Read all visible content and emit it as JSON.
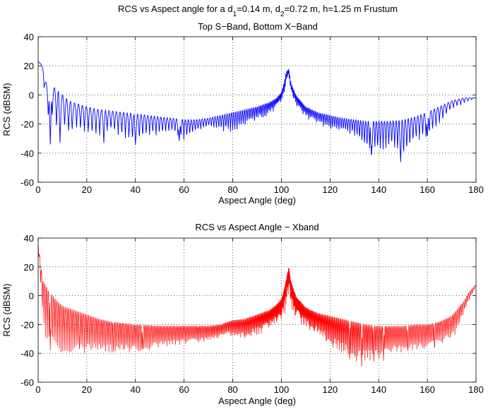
{
  "figure": {
    "title_line1": {
      "prefix": "RCS vs Aspect angle for a d",
      "sub1": "1",
      "mid1": "=0.14 m, d",
      "sub2": "2",
      "suffix": "=0.72 m, h=1.25 m Frustum"
    },
    "title_line2": "Top S−Band, Bottom X−Band"
  },
  "colors": {
    "s_band": "#0000ff",
    "x_band": "#ff0000",
    "grid": "#000000"
  },
  "chart_data": [
    {
      "type": "line",
      "name": "s-band",
      "title": "",
      "xlabel": "Aspect Angle (deg)",
      "ylabel": "RCS (dBSM)",
      "xlim": [
        0,
        180
      ],
      "ylim": [
        -60,
        40
      ],
      "xticks": [
        0,
        20,
        40,
        60,
        80,
        100,
        120,
        140,
        160,
        180
      ],
      "yticks": [
        -60,
        -40,
        -20,
        0,
        20,
        40
      ],
      "grid": true,
      "series": [
        {
          "name": "S-Band",
          "color": "#0000ff",
          "x": [
            0,
            1,
            2,
            3,
            4,
            5,
            6,
            8,
            10,
            12,
            14,
            16,
            20,
            25,
            30,
            35,
            40,
            45,
            50,
            55,
            60,
            65,
            70,
            75,
            80,
            85,
            90,
            95,
            98,
            100,
            101,
            102,
            103,
            104,
            106,
            110,
            115,
            120,
            125,
            130,
            135,
            140,
            145,
            150,
            155,
            160,
            165,
            170,
            175,
            180
          ],
          "upper": [
            23,
            22,
            18,
            10,
            5,
            4,
            6,
            3,
            0,
            -3,
            -5,
            -6,
            -8,
            -10,
            -11,
            -12,
            -13,
            -14,
            -15,
            -16,
            -17,
            -17,
            -16,
            -14,
            -12,
            -10,
            -8,
            -5,
            -2,
            2,
            8,
            16,
            18,
            8,
            0,
            -8,
            -12,
            -14,
            -16,
            -17,
            -18,
            -18,
            -18,
            -17,
            -15,
            -12,
            -8,
            -4,
            -2,
            -2
          ],
          "lower": [
            23,
            21,
            12,
            -5,
            -15,
            -34,
            -15,
            -30,
            -20,
            -32,
            -20,
            -25,
            -28,
            -30,
            -25,
            -30,
            -35,
            -28,
            -28,
            -26,
            -32,
            -26,
            -22,
            -25,
            -26,
            -22,
            -18,
            -14,
            -10,
            -6,
            -2,
            5,
            14,
            0,
            -8,
            -16,
            -20,
            -24,
            -26,
            -28,
            -40,
            -40,
            -36,
            -46,
            -32,
            -30,
            -20,
            -10,
            -6,
            -2
          ],
          "notable_dips": [
            [
              5,
              -35
            ],
            [
              9,
              -33
            ],
            [
              14,
              -24
            ],
            [
              27,
              -33
            ],
            [
              40,
              -35
            ],
            [
              58,
              -32
            ],
            [
              137,
              -44
            ],
            [
              149,
              -47
            ],
            [
              160,
              -30
            ]
          ]
        }
      ]
    },
    {
      "type": "line",
      "name": "x-band",
      "title": "RCS vs Aspect Angle − Xband",
      "xlabel": "Aspect Angle (deg)",
      "ylabel": "RCS (dBSM)",
      "xlim": [
        0,
        180
      ],
      "ylim": [
        -60,
        40
      ],
      "xticks": [
        0,
        20,
        40,
        60,
        80,
        100,
        120,
        140,
        160,
        180
      ],
      "yticks": [
        -60,
        -40,
        -20,
        0,
        20,
        40
      ],
      "grid": true,
      "series": [
        {
          "name": "X-Band",
          "color": "#ff0000",
          "x": [
            0,
            0.5,
            1,
            1.5,
            2,
            3,
            4,
            6,
            8,
            10,
            15,
            20,
            25,
            30,
            40,
            50,
            60,
            70,
            75,
            78,
            80,
            85,
            90,
            95,
            98,
            100,
            101,
            102,
            103,
            104,
            106,
            110,
            115,
            120,
            125,
            130,
            135,
            140,
            145,
            150,
            155,
            160,
            165,
            170,
            172,
            175,
            177,
            180
          ],
          "upper": [
            35,
            30,
            22,
            16,
            10,
            8,
            4,
            0,
            -4,
            -7,
            -10,
            -13,
            -16,
            -18,
            -20,
            -21,
            -21,
            -21,
            -20,
            -18,
            -17,
            -16,
            -13,
            -10,
            -6,
            -2,
            4,
            12,
            21,
            10,
            0,
            -8,
            -12,
            -14,
            -16,
            -18,
            -20,
            -21,
            -21,
            -21,
            -20,
            -20,
            -18,
            -14,
            -10,
            -4,
            2,
            8
          ],
          "lower": [
            34,
            20,
            5,
            -10,
            -20,
            -30,
            -35,
            -38,
            -38,
            -40,
            -40,
            -40,
            -40,
            -40,
            -40,
            -36,
            -34,
            -32,
            -30,
            -28,
            -30,
            -30,
            -28,
            -24,
            -20,
            -18,
            -14,
            -10,
            2,
            -10,
            -18,
            -22,
            -28,
            -36,
            -42,
            -46,
            -46,
            -44,
            -40,
            -40,
            -38,
            -38,
            -34,
            -30,
            -26,
            -12,
            -4,
            6
          ],
          "notable_dips": [
            [
              5,
              -40
            ],
            [
              17,
              -40
            ],
            [
              31,
              -40
            ],
            [
              43,
              -38
            ],
            [
              128,
              -45
            ],
            [
              133,
              -50
            ],
            [
              138,
              -48
            ],
            [
              142,
              -46
            ],
            [
              152,
              -40
            ],
            [
              163,
              -38
            ]
          ]
        }
      ]
    }
  ]
}
